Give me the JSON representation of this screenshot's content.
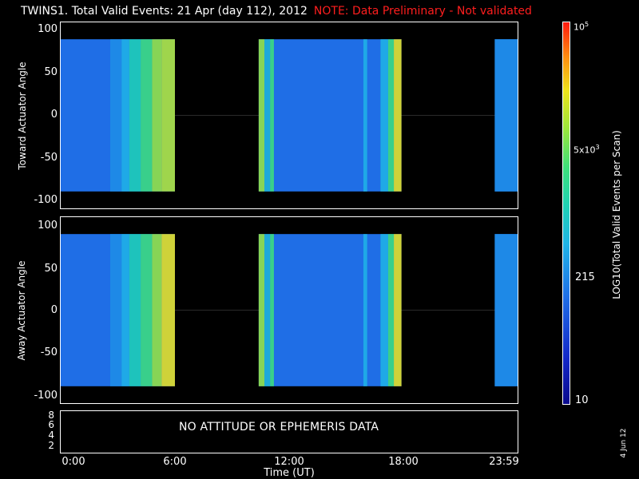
{
  "title": {
    "main": "TWINS1. Total Valid Events: 21 Apr (day 112), 2012",
    "note": "NOTE: Data Preliminary - Not validated",
    "note_color": "#ff1e1e"
  },
  "chart_data": [
    {
      "type": "heatmap",
      "ylabel": "Toward Actuator Angle",
      "ylim": [
        -110,
        110
      ],
      "yticks": [
        "100",
        "50",
        "0",
        "-50",
        "-100"
      ],
      "data_angle_range": [
        -90,
        90
      ],
      "data_intervals_hours": [
        [
          0.0,
          6.0
        ],
        [
          10.4,
          17.9
        ],
        [
          22.8,
          24.0
        ]
      ],
      "colorbar_labels": [
        "10",
        "215",
        "5x10^3",
        "10^5"
      ]
    },
    {
      "type": "heatmap",
      "ylabel": "Away Actuator Angle",
      "ylim": [
        -110,
        110
      ],
      "yticks": [
        "100",
        "50",
        "0",
        "-50",
        "-100"
      ],
      "data_angle_range": [
        -90,
        90
      ],
      "data_intervals_hours": [
        [
          0.0,
          6.0
        ],
        [
          10.4,
          17.9
        ],
        [
          22.8,
          24.0
        ]
      ]
    }
  ],
  "attitude_panel": {
    "yticks": [
      "8",
      "6",
      "4",
      "2"
    ],
    "message": "NO ATTITUDE OR EPHEMERIS DATA"
  },
  "xaxis": {
    "label": "Time (UT)",
    "ticks": [
      "0:00",
      "6:00",
      "12:00",
      "18:00",
      "23:59"
    ]
  },
  "colorbar": {
    "title": "LOG10(Total Valid Events per Scan)",
    "labels": {
      "min": "10",
      "low": "215",
      "mid": "5x10",
      "mid_exp": "3",
      "max": "10",
      "max_exp": "5"
    }
  },
  "footer": {
    "date": "4 Jun 12"
  }
}
